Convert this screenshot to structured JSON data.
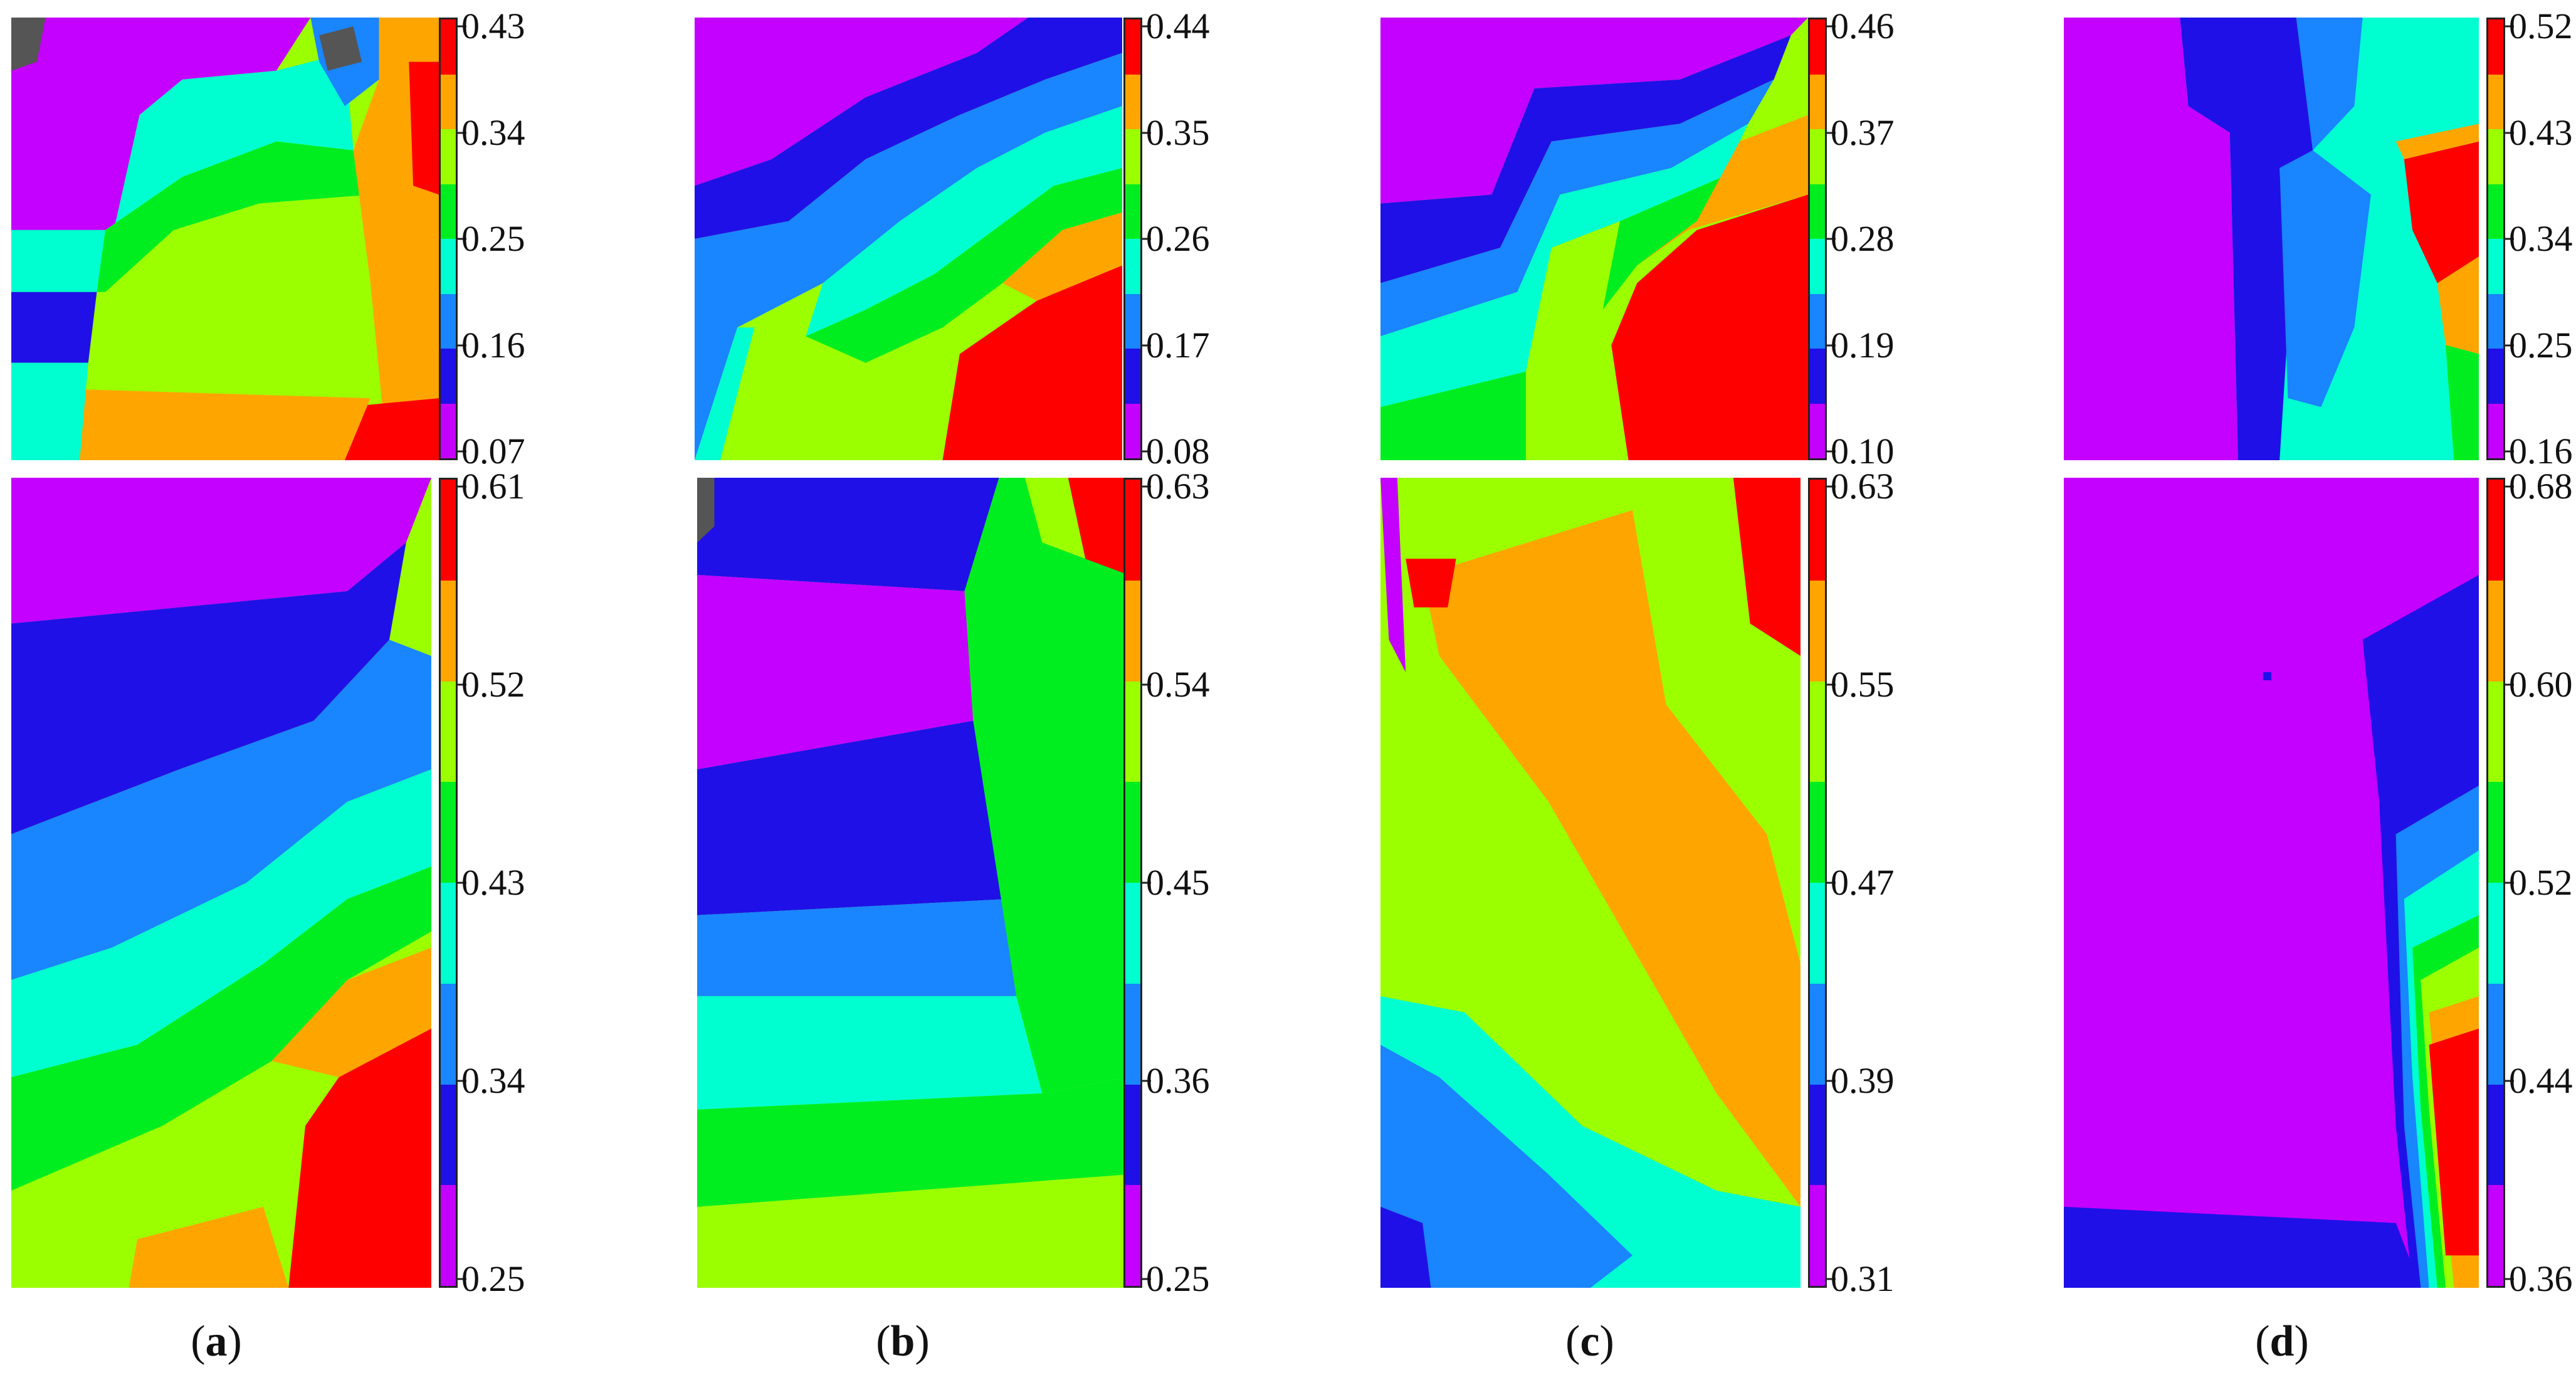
{
  "palette": [
    "#c400ff",
    "#1f10e8",
    "#1985ff",
    "#00ffd0",
    "#00ee20",
    "#9bff00",
    "#ffa500",
    "#ff0000"
  ],
  "rows": [
    {
      "panels": [
        {
          "id": "a",
          "ticks": [
            "0.43",
            "0.34",
            "0.25",
            "0.16",
            "0.07"
          ]
        },
        {
          "id": "b",
          "ticks": [
            "0.44",
            "0.35",
            "0.26",
            "0.17",
            "0.08"
          ]
        },
        {
          "id": "c",
          "ticks": [
            "0.46",
            "0.37",
            "0.28",
            "0.19",
            "0.10"
          ]
        },
        {
          "id": "d",
          "ticks": [
            "0.52",
            "0.43",
            "0.34",
            "0.25",
            "0.16"
          ]
        }
      ]
    },
    {
      "panels": [
        {
          "id": "a",
          "ticks": [
            "0.61",
            "0.52",
            "0.43",
            "0.34",
            "0.25"
          ]
        },
        {
          "id": "b",
          "ticks": [
            "0.63",
            "0.54",
            "0.45",
            "0.36",
            "0.25"
          ]
        },
        {
          "id": "c",
          "ticks": [
            "0.63",
            "0.55",
            "0.47",
            "0.39",
            "0.31"
          ]
        },
        {
          "id": "d",
          "ticks": [
            "0.68",
            "0.60",
            "0.52",
            "0.44",
            "0.36"
          ]
        }
      ]
    }
  ],
  "captions": [
    "a",
    "b",
    "c",
    "d"
  ]
}
